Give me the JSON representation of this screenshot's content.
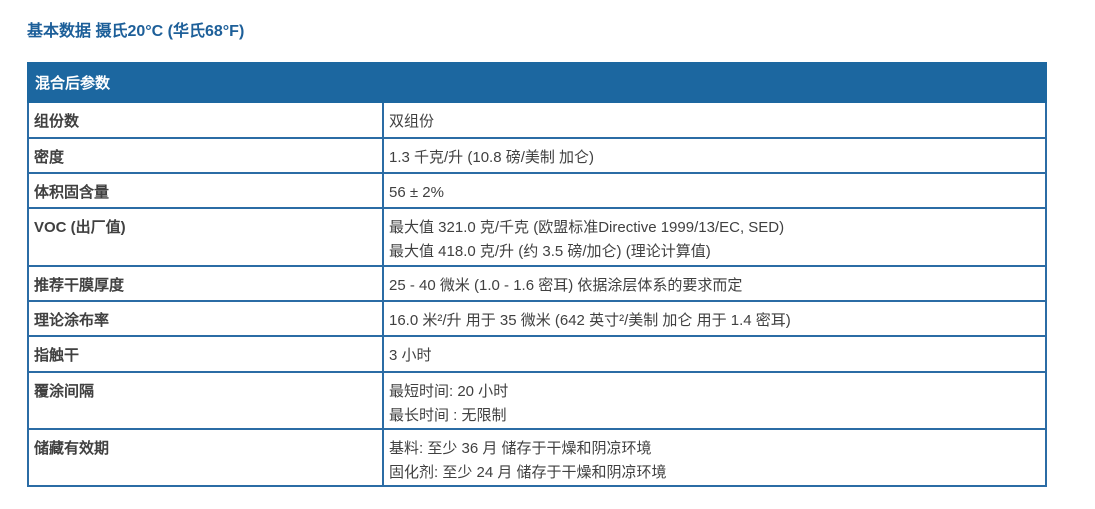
{
  "title": "基本数据 摄氏20°C (华氏68°F)",
  "table": {
    "header": "混合后参数",
    "rows": [
      {
        "key": "组份数",
        "values": [
          "双组份"
        ]
      },
      {
        "key": "密度",
        "values": [
          "1.3 千克/升 (10.8 磅/美制 加仑)"
        ]
      },
      {
        "key": "体积固含量",
        "values": [
          "56 ± 2%"
        ]
      },
      {
        "key": "VOC (出厂值)",
        "values": [
          "最大值 321.0 克/千克 (欧盟标准Directive 1999/13/EC, SED)",
          "最大值 418.0 克/升 (约 3.5 磅/加仑) (理论计算值)"
        ]
      },
      {
        "key": "推荐干膜厚度",
        "values": [
          "25 - 40 微米 (1.0 - 1.6 密耳) 依据涂层体系的要求而定"
        ]
      },
      {
        "key": "理论涂布率",
        "values": [
          "16.0 米²/升 用于 35 微米 (642 英寸²/美制 加仑 用于 1.4 密耳)"
        ]
      },
      {
        "key": "指触干",
        "values": [
          "3 小时"
        ]
      },
      {
        "key": "覆涂间隔",
        "values": [
          "最短时间: 20 小时",
          "最长时间 : 无限制"
        ]
      },
      {
        "key": "储藏有效期",
        "values": [
          "基料: 至少 36 月 储存于干燥和阴凉环境",
          "固化剂: 至少 24 月 储存于干燥和阴凉环境"
        ]
      }
    ]
  },
  "colors": {
    "accent": "#1c67a0",
    "title": "#1d5f99",
    "text": "#404040"
  }
}
